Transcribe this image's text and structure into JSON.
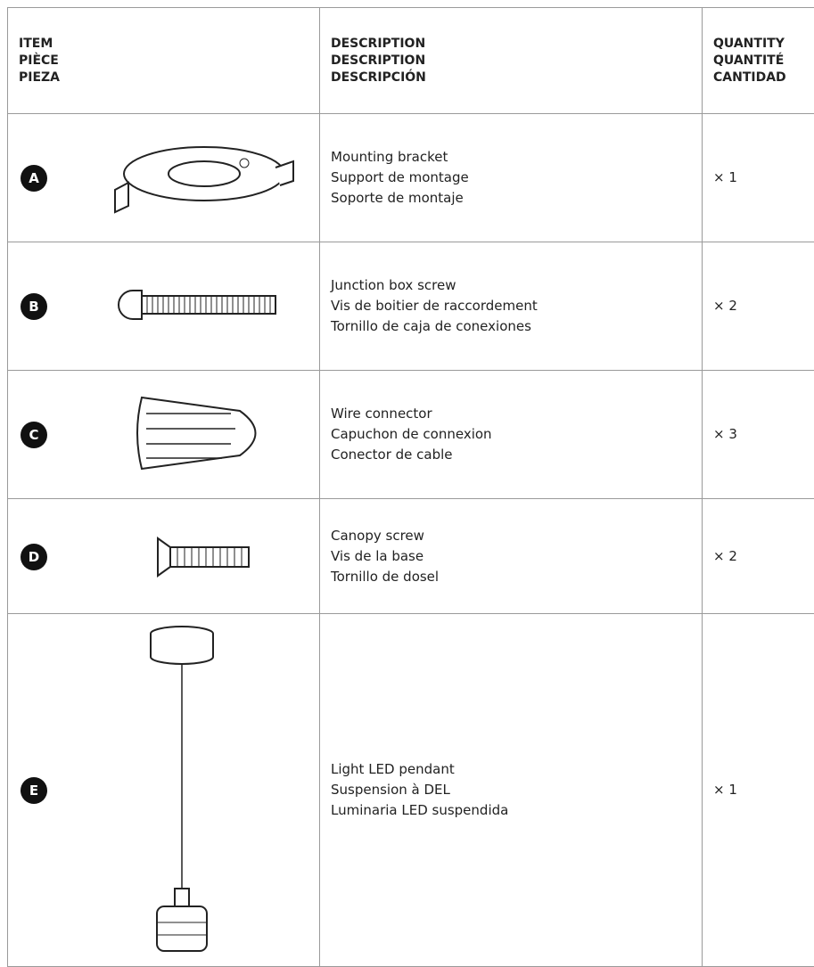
{
  "header": {
    "item": [
      "ITEM",
      "PIÈCE",
      "PIEZA"
    ],
    "description": [
      "DESCRIPTION",
      "DESCRIPTION",
      "DESCRIPCIÓN"
    ],
    "quantity": [
      "QUANTITY",
      "QUANTITÉ",
      "CANTIDAD"
    ]
  },
  "rows": [
    {
      "letter": "A",
      "description": [
        "Mounting bracket",
        "Support de montage",
        "Soporte de montaje"
      ],
      "quantity": "× 1"
    },
    {
      "letter": "B",
      "description": [
        "Junction box screw",
        "Vis de boitier de raccordement",
        "Tornillo de caja de conexiones"
      ],
      "quantity": "× 2"
    },
    {
      "letter": "C",
      "description": [
        "Wire connector",
        "Capuchon de connexion",
        "Conector de cable"
      ],
      "quantity": "× 3"
    },
    {
      "letter": "D",
      "description": [
        "Canopy screw",
        "Vis de la base",
        "Tornillo de dosel"
      ],
      "quantity": "× 2"
    },
    {
      "letter": "E",
      "description": [
        "Light LED pendant",
        "Suspension à DEL",
        "Luminaria LED suspendida"
      ],
      "quantity": "× 1"
    }
  ]
}
